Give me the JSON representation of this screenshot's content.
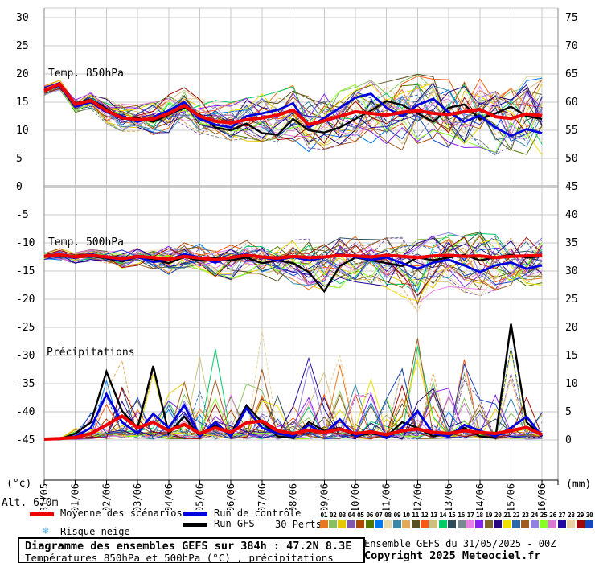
{
  "axes": {
    "left_unit": "(°c)",
    "right_unit": "(mm)",
    "altitude_label": "Alt. 670m",
    "left_ticks": [
      30,
      25,
      20,
      15,
      10,
      5,
      0,
      -5,
      -10,
      -15,
      -20,
      -25,
      -30,
      -35,
      -40,
      -45
    ],
    "right_ticks": [
      75,
      70,
      65,
      60,
      55,
      50,
      45,
      40,
      35,
      30,
      25,
      20,
      15,
      10,
      5,
      0
    ],
    "x_labels": [
      "31/05",
      "01/06",
      "02/06",
      "03/06",
      "04/06",
      "05/06",
      "06/06",
      "07/06",
      "08/06",
      "09/06",
      "10/06",
      "11/06",
      "12/06",
      "13/06",
      "14/06",
      "15/06",
      "16/06"
    ],
    "left_range": [
      -45,
      30
    ],
    "right_range": [
      0,
      75
    ],
    "grid": true
  },
  "legend": {
    "mean_label": "Moyenne des scénarios",
    "control_label": "Run de contrôle",
    "gfs_label": "Run GFS",
    "perts_label": "30 Perts.",
    "snow_label": "Risque neige",
    "snow_icon": "❄",
    "mean_color": "#ee0000",
    "control_color": "#0000dd",
    "gfs_color": "#000000"
  },
  "perts": {
    "items": [
      {
        "num": "01",
        "color": "#e87820"
      },
      {
        "num": "02",
        "color": "#88c060"
      },
      {
        "num": "03",
        "color": "#e6c800"
      },
      {
        "num": "04",
        "color": "#8058b0"
      },
      {
        "num": "05",
        "color": "#b04800"
      },
      {
        "num": "06",
        "color": "#507800"
      },
      {
        "num": "07",
        "color": "#0078f0"
      },
      {
        "num": "08",
        "color": "#e8d8a8"
      },
      {
        "num": "09",
        "color": "#3888a8"
      },
      {
        "num": "10",
        "color": "#e0a858"
      },
      {
        "num": "11",
        "color": "#585020"
      },
      {
        "num": "12",
        "color": "#f85810"
      },
      {
        "num": "13",
        "color": "#d0c080"
      },
      {
        "num": "14",
        "color": "#00cc66"
      },
      {
        "num": "15",
        "color": "#2e4d5c"
      },
      {
        "num": "16",
        "color": "#788890"
      },
      {
        "num": "17",
        "color": "#e880e8"
      },
      {
        "num": "18",
        "color": "#8822ee"
      },
      {
        "num": "19",
        "color": "#806828"
      },
      {
        "num": "20",
        "color": "#280880"
      },
      {
        "num": "21",
        "color": "#f0e000"
      },
      {
        "num": "22",
        "color": "#2868a8"
      },
      {
        "num": "23",
        "color": "#a05c20"
      },
      {
        "num": "24",
        "color": "#9080e0"
      },
      {
        "num": "25",
        "color": "#88ff22"
      },
      {
        "num": "26",
        "color": "#d878d0"
      },
      {
        "num": "27",
        "color": "#2008a0"
      },
      {
        "num": "28",
        "color": "#e8d0a0"
      },
      {
        "num": "29",
        "color": "#a00808"
      },
      {
        "num": "30",
        "color": "#1844c0"
      }
    ]
  },
  "footer": {
    "title": "Diagramme des ensembles GEFS sur 384h : 47.2N 8.3E",
    "subtitle": "Températures 850hPa et 500hPa (°C) , précipitations (mm)",
    "run_info": "Ensemble GEFS du 31/05/2025 - 00Z",
    "copyright": "Copyright 2025 Meteociel.fr"
  },
  "chart_data": [
    {
      "type": "line",
      "panel": "temp_850hPa",
      "label": "Temp. 850hPa",
      "unit": "°C",
      "x_start_date": "31/05 00Z",
      "x_step_days": 0.5,
      "x_end_days": 16,
      "series": [
        {
          "name": "Moyenne des scénarios",
          "color": "#ee0000",
          "values": [
            17.0,
            18.2,
            14.6,
            15.3,
            13.5,
            12.2,
            11.9,
            12.0,
            13.0,
            14.4,
            12.5,
            11.6,
            11.3,
            11.9,
            12.2,
            12.7,
            13.6,
            11.0,
            11.7,
            12.5,
            13.3,
            13.0,
            12.7,
            13.2,
            13.5,
            13.0,
            12.8,
            13.3,
            13.7,
            12.4,
            12.1,
            12.9,
            12.6
          ]
        },
        {
          "name": "Run de contrôle",
          "color": "#0000dd",
          "values": [
            17.1,
            18.0,
            14.2,
            15.0,
            13.2,
            12.5,
            11.5,
            12.3,
            13.5,
            15.0,
            12.0,
            11.0,
            10.5,
            12.5,
            13.0,
            13.6,
            14.8,
            10.5,
            12.2,
            14.0,
            15.8,
            16.5,
            14.0,
            12.5,
            14.5,
            15.6,
            13.2,
            11.5,
            12.6,
            10.5,
            9.0,
            10.2,
            9.5
          ]
        },
        {
          "name": "Run GFS",
          "color": "#000000",
          "values": [
            17.0,
            18.3,
            14.8,
            15.5,
            13.8,
            12.0,
            12.2,
            11.5,
            12.8,
            14.0,
            12.8,
            10.5,
            10.0,
            11.2,
            9.5,
            9.2,
            12.0,
            10.0,
            9.6,
            10.5,
            12.0,
            13.5,
            15.2,
            14.5,
            13.0,
            11.5,
            14.0,
            14.6,
            12.0,
            13.0,
            14.2,
            12.5,
            12.0
          ]
        }
      ],
      "ensemble_envelope": {
        "min": [
          16.2,
          17.2,
          13.2,
          13.8,
          11.2,
          9.8,
          9.2,
          9.0,
          9.6,
          10.5,
          9.0,
          8.2,
          7.6,
          8.0,
          7.6,
          7.5,
          8.0,
          6.2,
          6.6,
          7.0,
          7.6,
          7.0,
          6.5,
          6.2,
          7.0,
          6.6,
          6.0,
          6.5,
          7.0,
          5.6,
          5.0,
          5.6,
          5.5
        ],
        "max": [
          17.9,
          19.2,
          16.0,
          16.8,
          15.8,
          15.0,
          14.6,
          15.0,
          16.4,
          18.0,
          16.0,
          15.4,
          15.0,
          16.0,
          16.5,
          17.0,
          18.0,
          16.0,
          16.6,
          17.5,
          18.5,
          19.0,
          18.6,
          19.4,
          20.0,
          19.5,
          19.0,
          20.0,
          20.5,
          19.6,
          19.0,
          20.0,
          19.6
        ]
      }
    },
    {
      "type": "line",
      "panel": "temp_500hPa",
      "label": "Temp. 500hPa",
      "unit": "°C",
      "x_start_date": "31/05 00Z",
      "x_step_days": 0.5,
      "x_end_days": 16,
      "series": [
        {
          "name": "Moyenne des scénarios",
          "color": "#ee0000",
          "values": [
            -12.4,
            -12.1,
            -12.5,
            -12.2,
            -12.5,
            -12.8,
            -12.4,
            -12.6,
            -12.9,
            -12.4,
            -12.7,
            -13.0,
            -12.6,
            -12.2,
            -12.5,
            -12.7,
            -12.4,
            -12.6,
            -12.5,
            -12.2,
            -12.3,
            -12.5,
            -12.2,
            -12.4,
            -12.6,
            -12.3,
            -12.2,
            -12.4,
            -12.3,
            -12.6,
            -12.4,
            -12.3,
            -12.2
          ]
        },
        {
          "name": "Run de contrôle",
          "color": "#0000dd",
          "values": [
            -12.4,
            -12.2,
            -12.7,
            -12.0,
            -12.6,
            -13.1,
            -12.5,
            -13.4,
            -13.0,
            -12.0,
            -12.6,
            -13.5,
            -12.5,
            -12.0,
            -12.6,
            -13.0,
            -12.5,
            -13.1,
            -12.6,
            -12.0,
            -12.5,
            -13.0,
            -12.6,
            -13.6,
            -14.6,
            -13.5,
            -13.0,
            -14.0,
            -15.2,
            -14.0,
            -13.5,
            -14.6,
            -14.0
          ]
        },
        {
          "name": "Run GFS",
          "color": "#000000",
          "values": [
            -12.4,
            -12.1,
            -12.5,
            -12.4,
            -12.7,
            -13.3,
            -12.5,
            -12.9,
            -13.6,
            -12.5,
            -13.1,
            -12.6,
            -13.1,
            -12.6,
            -13.6,
            -13.1,
            -13.6,
            -15.2,
            -18.6,
            -14.1,
            -12.6,
            -13.1,
            -13.6,
            -14.1,
            -12.6,
            -13.1,
            -12.6,
            -12.1,
            -13.1,
            -12.6,
            -12.1,
            -12.6,
            -12.4
          ]
        }
      ],
      "ensemble_envelope": {
        "min": [
          -13.2,
          -13.0,
          -13.6,
          -13.2,
          -13.6,
          -14.6,
          -14.0,
          -15.0,
          -15.6,
          -14.5,
          -15.0,
          -16.0,
          -16.6,
          -15.5,
          -16.0,
          -17.0,
          -17.6,
          -18.5,
          -20.0,
          -18.0,
          -17.0,
          -17.6,
          -18.6,
          -19.5,
          -22.5,
          -19.0,
          -18.0,
          -19.0,
          -19.6,
          -18.5,
          -17.6,
          -18.0,
          -17.5
        ],
        "max": [
          -11.6,
          -11.0,
          -11.6,
          -11.0,
          -11.2,
          -11.0,
          -10.6,
          -10.8,
          -10.5,
          -10.0,
          -10.2,
          -10.5,
          -10.0,
          -9.6,
          -9.8,
          -10.0,
          -9.5,
          -9.0,
          -9.2,
          -9.0,
          -8.8,
          -9.0,
          -8.6,
          -8.8,
          -9.0,
          -8.6,
          -8.2,
          -8.5,
          -8.0,
          -8.5,
          -8.2,
          -8.0,
          -8.2
        ]
      }
    },
    {
      "type": "line",
      "panel": "precipitations",
      "label": "Précipitations",
      "unit": "mm",
      "x_start_date": "31/05 00Z",
      "x_step_days": 0.5,
      "x_end_days": 16,
      "baseline_mm": 0,
      "series": [
        {
          "name": "Moyenne des scénarios",
          "color": "#ee0000",
          "values": [
            0,
            0.1,
            0.3,
            1.0,
            2.5,
            4.1,
            2.0,
            3.0,
            1.5,
            2.6,
            1.0,
            2.0,
            1.2,
            2.9,
            3.2,
            1.5,
            1.0,
            1.6,
            1.2,
            1.8,
            1.0,
            1.3,
            0.8,
            1.5,
            1.8,
            1.2,
            1.0,
            1.5,
            1.2,
            1.0,
            1.5,
            2.1,
            0.8
          ]
        },
        {
          "name": "Run de contrôle",
          "color": "#0000dd",
          "values": [
            0,
            0,
            0.5,
            2.0,
            8.0,
            3.0,
            1.0,
            4.5,
            2.0,
            6.0,
            0.5,
            3.0,
            0.5,
            5.5,
            2.0,
            1.0,
            0.5,
            2.5,
            1.0,
            3.5,
            0.5,
            1.5,
            0.2,
            2.0,
            5.0,
            1.0,
            0.5,
            2.5,
            1.5,
            0.5,
            2.0,
            4.0,
            0.5
          ]
        },
        {
          "name": "Run GFS",
          "color": "#000000",
          "values": [
            0,
            0,
            1.0,
            3.0,
            12.0,
            5.0,
            2.0,
            13.0,
            1.0,
            4.0,
            0.5,
            2.5,
            1.0,
            6.0,
            3.0,
            0.5,
            0.2,
            3.0,
            1.5,
            2.0,
            0.5,
            1.0,
            0.5,
            3.0,
            2.0,
            0.5,
            1.0,
            2.0,
            0.5,
            0.2,
            20.5,
            3.0,
            0.5
          ]
        }
      ],
      "ensemble_envelope": {
        "min": 0,
        "max": [
          0.2,
          0.8,
          2,
          6,
          12,
          14,
          10,
          13,
          8,
          12,
          18,
          18,
          8,
          12,
          20,
          10,
          8,
          15,
          12,
          18,
          10,
          12,
          8,
          14,
          19,
          12,
          10,
          16,
          9,
          8,
          21,
          12,
          5
        ]
      }
    }
  ]
}
